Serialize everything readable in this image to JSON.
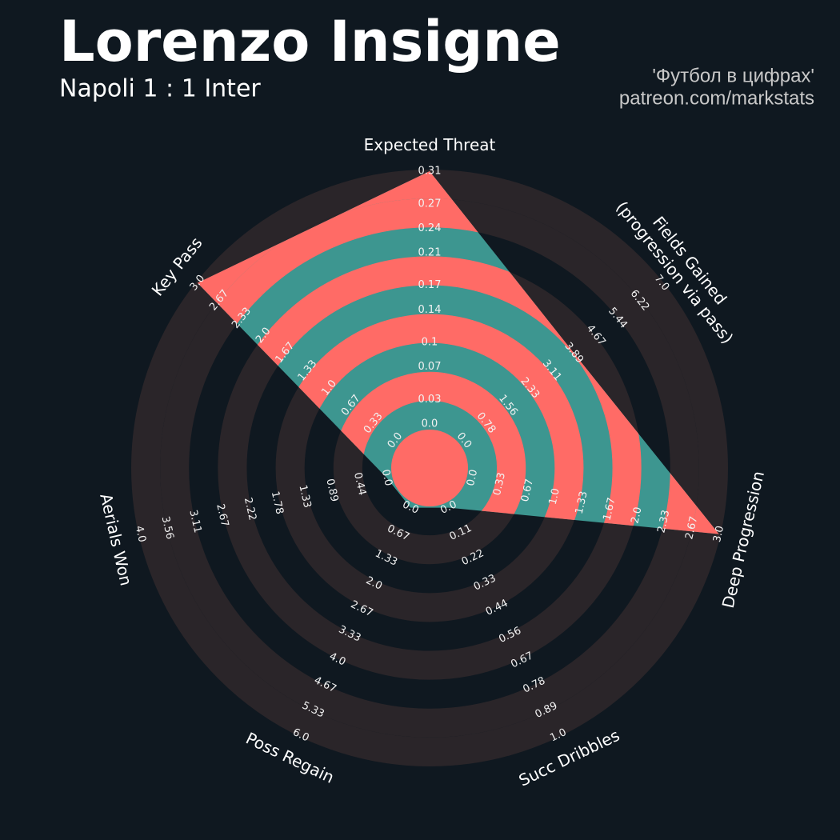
{
  "chart_data": {
    "type": "radar",
    "title": "Lorenzo Insigne",
    "subtitle": "Napoli 1 : 1 Inter",
    "credits": [
      "'Футбол в цифрах'",
      "patreon.com/markstats"
    ],
    "categories": [
      "Expected Threat",
      "Fields Gained\n(progression via pass)",
      "Deep Progression",
      "Succ Dribbles",
      "Poss Regain",
      "Aerials Won",
      "Key Pass"
    ],
    "values": [
      0.31,
      3.89,
      3.0,
      0.0,
      0.0,
      0.0,
      3.0
    ],
    "ranges": [
      [
        0,
        0.31
      ],
      [
        0,
        7
      ],
      [
        0,
        3
      ],
      [
        0,
        1
      ],
      [
        0,
        6
      ],
      [
        0,
        4
      ],
      [
        0,
        3
      ]
    ],
    "ticks": [
      [
        {
          "value": 0,
          "label": "0.0"
        },
        0.03,
        0.07,
        0.1,
        0.14,
        0.17,
        0.21,
        0.24,
        0.27,
        0.31
      ],
      [
        {
          "value": 0,
          "label": "0.0"
        },
        0.78,
        1.56,
        2.33,
        3.11,
        3.89,
        4.67,
        5.44,
        6.22,
        {
          "value": 7,
          "label": "7.0"
        }
      ],
      [
        {
          "value": 0,
          "label": "0.0"
        },
        0.33,
        0.67,
        {
          "value": 1,
          "label": "1.0"
        },
        1.33,
        1.67,
        {
          "value": 2,
          "label": "2.0"
        },
        2.33,
        2.67,
        {
          "value": 3,
          "label": "3.0"
        }
      ],
      [
        {
          "value": 0,
          "label": "0.0"
        },
        0.11,
        0.22,
        0.33,
        0.44,
        0.56,
        0.67,
        0.78,
        0.89,
        {
          "value": 1,
          "label": "1.0"
        }
      ],
      [
        {
          "value": 0,
          "label": "0.0"
        },
        0.67,
        1.33,
        {
          "value": 2,
          "label": "2.0"
        },
        2.67,
        3.33,
        {
          "value": 4,
          "label": "4.0"
        },
        4.67,
        5.33,
        {
          "value": 6,
          "label": "6.0"
        }
      ],
      [
        {
          "value": 0,
          "label": "0.0"
        },
        0.44,
        0.89,
        1.33,
        1.78,
        2.22,
        2.67,
        3.11,
        3.56,
        {
          "value": 4,
          "label": "4.0"
        }
      ],
      [
        {
          "value": 0,
          "label": "0.0"
        },
        0.33,
        0.67,
        {
          "value": 1,
          "label": "1.0"
        },
        1.33,
        1.67,
        {
          "value": 2,
          "label": "2.0"
        },
        2.33,
        2.67,
        {
          "value": 3,
          "label": "3.0"
        }
      ]
    ],
    "colors": {
      "background": "#0f1820",
      "ring": "#2a2529",
      "fill": "#3d9690",
      "ring_fill": "#ff6b66"
    }
  }
}
